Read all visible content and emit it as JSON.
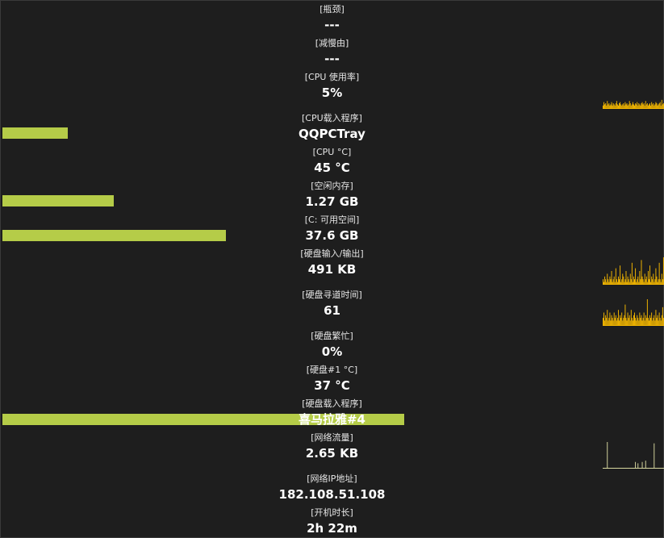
{
  "colors": {
    "background": "#1e1e1e",
    "bar": "#b5cc48",
    "spark_orange": "#f5b800",
    "spark_yellow": "#d9d9a0"
  },
  "rows": [
    {
      "id": "bottleneck",
      "label": "[瓶颈]",
      "value": "---",
      "bar_fraction": null,
      "spark": null
    },
    {
      "id": "slowdown",
      "label": "[减慢由]",
      "value": "---",
      "bar_fraction": null,
      "spark": null
    },
    {
      "id": "cpu-usage",
      "label": "[CPU 使用率]",
      "value": "5%",
      "bar_fraction": null,
      "spark": {
        "color": "#f5b800",
        "values": [
          0.3,
          0.6,
          0.4,
          0.5,
          0.3,
          0.7,
          0.4,
          0.5,
          0.3,
          0.4,
          0.6,
          0.3,
          0.5,
          0.4,
          0.3,
          0.5,
          0.7,
          0.4,
          0.3,
          0.5,
          0.6,
          0.4,
          0.3,
          0.4,
          0.5,
          0.3,
          0.6,
          0.4,
          0.5,
          0.3,
          0.4,
          0.7,
          0.5,
          0.3,
          0.4,
          0.6,
          0.4,
          0.3,
          0.5,
          0.4,
          0.6,
          0.3,
          0.5,
          0.4,
          0.3,
          0.5,
          0.6,
          0.4,
          0.5,
          0.3,
          0.7,
          0.4,
          0.5,
          0.3,
          0.4,
          0.5,
          0.3,
          0.6,
          0.4,
          0.5,
          0.3,
          0.4,
          0.6,
          0.5,
          0.3,
          0.4,
          0.5,
          0.6,
          0.3,
          0.8,
          0.4,
          0.5
        ]
      }
    },
    {
      "id": "cpu-load-program",
      "label": "[CPU载入程序]",
      "value": "QQPCTray",
      "bar_fraction": 0.099,
      "spark": null
    },
    {
      "id": "cpu-temp",
      "label": "[CPU °C]",
      "value": "45 °C",
      "bar_fraction": null,
      "spark": null
    },
    {
      "id": "free-memory",
      "label": "[空闲内存]",
      "value": "1.27 GB",
      "bar_fraction": 0.168,
      "spark": null
    },
    {
      "id": "c-free-space",
      "label": "[C: 可用空间]",
      "value": "37.6 GB",
      "bar_fraction": 0.338,
      "spark": null
    },
    {
      "id": "disk-io",
      "label": "[硬盘输入/输出]",
      "value": "491 KB",
      "bar_fraction": null,
      "spark": {
        "color": "#f5b800",
        "values": [
          0.2,
          0.1,
          0.3,
          0.2,
          0.1,
          0.4,
          0.2,
          0.1,
          0.3,
          0.2,
          0.5,
          0.1,
          0.2,
          0.3,
          0.1,
          0.6,
          0.2,
          0.1,
          0.3,
          0.2,
          0.7,
          0.1,
          0.2,
          0.4,
          0.3,
          0.1,
          0.2,
          0.5,
          0.1,
          0.3,
          0.2,
          0.1,
          0.4,
          0.2,
          0.8,
          0.1,
          0.3,
          0.2,
          0.6,
          0.1,
          0.2,
          0.3,
          0.1,
          0.5,
          0.2,
          0.9,
          0.3,
          0.2,
          0.1,
          0.4,
          0.2,
          0.3,
          0.1,
          0.5,
          0.2,
          0.7,
          0.1,
          0.3,
          0.2,
          0.4,
          0.1,
          0.2,
          0.6,
          0.3,
          0.1,
          0.2,
          0.8,
          0.2,
          0.1,
          0.4,
          0.2,
          1.0
        ]
      }
    },
    {
      "id": "disk-seek-time",
      "label": "[硬盘寻道时间]",
      "value": "61",
      "bar_fraction": null,
      "spark": {
        "color": "#f5b800",
        "values": [
          0.3,
          0.5,
          0.2,
          0.4,
          0.3,
          0.6,
          0.2,
          0.3,
          0.5,
          0.2,
          0.4,
          0.3,
          0.2,
          0.5,
          0.3,
          0.4,
          0.2,
          0.3,
          0.6,
          0.2,
          0.4,
          0.3,
          0.5,
          0.2,
          0.3,
          0.4,
          0.8,
          0.3,
          0.2,
          0.5,
          0.3,
          0.4,
          0.2,
          0.6,
          0.3,
          0.2,
          0.4,
          0.5,
          0.3,
          0.2,
          0.4,
          0.3,
          0.2,
          0.5,
          0.3,
          0.4,
          0.2,
          0.3,
          0.5,
          0.2,
          0.4,
          0.3,
          1.0,
          0.3,
          0.2,
          0.4,
          0.3,
          0.5,
          0.2,
          0.3,
          0.4,
          0.2,
          0.6,
          0.3,
          0.4,
          0.2,
          0.5,
          0.3,
          0.2,
          0.4,
          0.7,
          0.3
        ]
      }
    },
    {
      "id": "disk-busy",
      "label": "[硬盘繁忙]",
      "value": "0%",
      "bar_fraction": null,
      "spark": null
    },
    {
      "id": "disk1-temp",
      "label": "[硬盘#1 °C]",
      "value": "37 °C",
      "bar_fraction": null,
      "spark": null
    },
    {
      "id": "disk-load-program",
      "label": "[硬盘载入程序]",
      "value": "喜马拉雅#4",
      "bar_fraction": 0.606,
      "spark": null
    },
    {
      "id": "network-traffic",
      "label": "[网络流量]",
      "value": "2.65 KB",
      "bar_fraction": null,
      "spark": {
        "color": "#d9d9a0",
        "values": [
          0,
          0,
          0,
          0,
          0,
          1.0,
          0,
          0,
          0,
          0,
          0,
          0,
          0,
          0,
          0,
          0,
          0,
          0,
          0,
          0,
          0,
          0,
          0,
          0,
          0,
          0,
          0,
          0,
          0,
          0,
          0,
          0,
          0,
          0,
          0,
          0,
          0,
          0,
          0.25,
          0,
          0,
          0.2,
          0,
          0,
          0,
          0,
          0.25,
          0,
          0,
          0,
          0.3,
          0,
          0,
          0,
          0,
          0,
          0,
          0,
          0,
          0,
          0.95,
          0,
          0,
          0,
          0,
          0,
          0,
          0,
          0,
          0,
          0,
          0
        ]
      }
    },
    {
      "id": "network-ip",
      "label": "[网络IP地址]",
      "value": "182.108.51.108",
      "bar_fraction": null,
      "spark": null
    },
    {
      "id": "uptime",
      "label": "[开机时长]",
      "value": "2h 22m",
      "bar_fraction": null,
      "spark": null
    }
  ]
}
